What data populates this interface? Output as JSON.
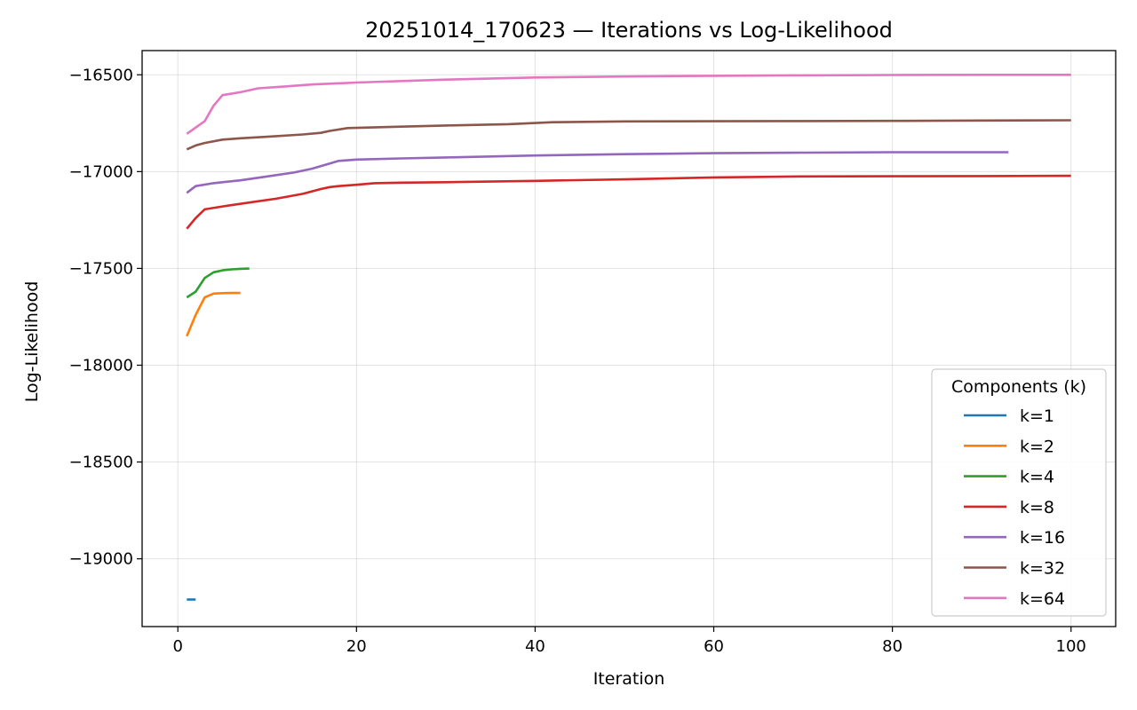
{
  "chart_data": {
    "type": "line",
    "title": "20251014_170623 — Iterations vs Log-Likelihood",
    "xlabel": "Iteration",
    "ylabel": "Log-Likelihood",
    "xlim": [
      -4,
      105
    ],
    "ylim": [
      -19350,
      -16375
    ],
    "xticks": [
      0,
      20,
      40,
      60,
      80,
      100
    ],
    "xtick_labels": [
      "0",
      "20",
      "40",
      "60",
      "80",
      "100"
    ],
    "yticks": [
      -16500,
      -17000,
      -17500,
      -18000,
      -18500,
      -19000
    ],
    "ytick_labels": [
      "−16500",
      "−17000",
      "−17500",
      "−18000",
      "−18500",
      "−19000"
    ],
    "grid": true,
    "legend": {
      "title": "Components (k)",
      "placement": "lower-right"
    },
    "series": [
      {
        "name": "k=1",
        "color": "#1f77b4",
        "x": [
          1,
          2
        ],
        "y": [
          -19210,
          -19210
        ]
      },
      {
        "name": "k=2",
        "color": "#ff7f0e",
        "x": [
          1,
          2,
          3,
          4,
          5,
          6,
          7
        ],
        "y": [
          -17850,
          -17740,
          -17650,
          -17630,
          -17628,
          -17627,
          -17627
        ]
      },
      {
        "name": "k=4",
        "color": "#2ca02c",
        "x": [
          1,
          2,
          3,
          4,
          5,
          6,
          7,
          8
        ],
        "y": [
          -17650,
          -17620,
          -17550,
          -17520,
          -17510,
          -17505,
          -17502,
          -17501
        ]
      },
      {
        "name": "k=8",
        "color": "#d62728",
        "x": [
          1,
          2,
          3,
          5,
          8,
          11,
          14,
          16,
          17,
          18,
          20,
          22,
          25,
          30,
          40,
          50,
          60,
          70,
          80,
          90,
          100
        ],
        "y": [
          -17295,
          -17240,
          -17195,
          -17180,
          -17160,
          -17140,
          -17115,
          -17090,
          -17080,
          -17075,
          -17068,
          -17060,
          -17057,
          -17055,
          -17048,
          -17040,
          -17030,
          -17025,
          -17024,
          -17023,
          -17022
        ]
      },
      {
        "name": "k=16",
        "color": "#9467bd",
        "x": [
          1,
          2,
          4,
          7,
          10,
          13,
          15,
          17,
          18,
          20,
          25,
          30,
          40,
          50,
          60,
          70,
          80,
          93
        ],
        "y": [
          -17110,
          -17075,
          -17060,
          -17045,
          -17025,
          -17005,
          -16985,
          -16958,
          -16945,
          -16938,
          -16932,
          -16927,
          -16917,
          -16910,
          -16905,
          -16902,
          -16900,
          -16900
        ]
      },
      {
        "name": "k=32",
        "color": "#8c564b",
        "x": [
          1,
          2,
          3,
          5,
          7,
          10,
          14,
          16,
          17,
          19,
          25,
          30,
          37,
          42,
          50,
          60,
          70,
          80,
          90,
          100
        ],
        "y": [
          -16885,
          -16865,
          -16852,
          -16835,
          -16828,
          -16820,
          -16808,
          -16800,
          -16790,
          -16775,
          -16768,
          -16762,
          -16755,
          -16745,
          -16741,
          -16740,
          -16739,
          -16738,
          -16736,
          -16735
        ]
      },
      {
        "name": "k=64",
        "color": "#e377c2",
        "x": [
          1,
          3,
          4,
          5,
          7,
          9,
          12,
          15,
          20,
          30,
          40,
          50,
          60,
          70,
          80,
          90,
          100
        ],
        "y": [
          -16805,
          -16740,
          -16660,
          -16605,
          -16590,
          -16570,
          -16560,
          -16550,
          -16540,
          -16525,
          -16514,
          -16509,
          -16505,
          -16503,
          -16501,
          -16500,
          -16500
        ]
      }
    ]
  }
}
